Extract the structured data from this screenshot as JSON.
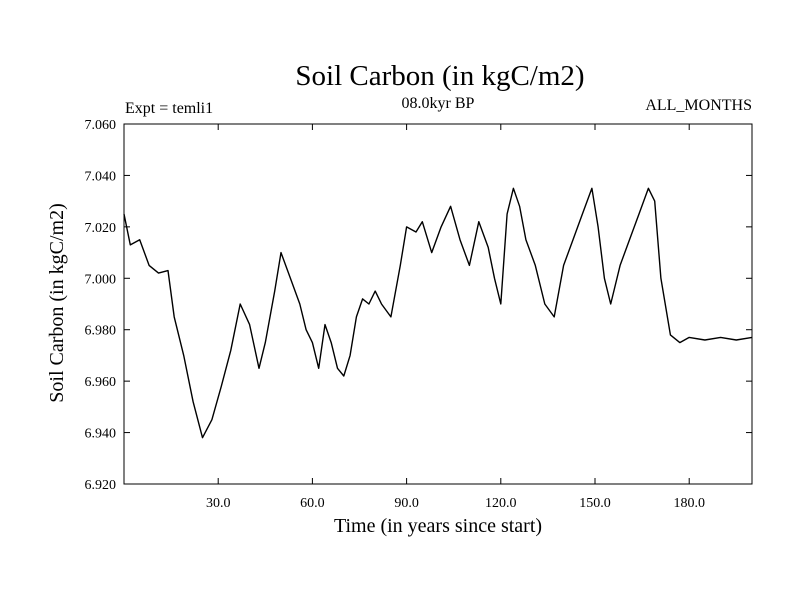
{
  "chart_data": {
    "type": "line",
    "title": "Soil Carbon (in kgC/m2)",
    "left_note": "Expt = temli1",
    "center_note": "08.0kyr BP",
    "right_note": "ALL_MONTHS",
    "xlabel": "Time (in years since start)",
    "ylabel": "Soil Carbon (in kgC/m2)",
    "xlim": [
      0,
      200
    ],
    "ylim": [
      6.92,
      7.06
    ],
    "x_ticks": [
      30,
      60,
      90,
      120,
      150,
      180
    ],
    "x_tick_labels": [
      "30.0",
      "60.0",
      "90.0",
      "120.0",
      "150.0",
      "180.0"
    ],
    "y_ticks": [
      6.92,
      6.94,
      6.96,
      6.98,
      7.0,
      7.02,
      7.04,
      7.06
    ],
    "y_tick_labels": [
      "6.920",
      "6.940",
      "6.960",
      "6.980",
      "7.000",
      "7.020",
      "7.040",
      "7.060"
    ],
    "grid": false,
    "line_color": "#000000",
    "series": [
      {
        "x": [
          0,
          2,
          5,
          8,
          11,
          14,
          16,
          19,
          22,
          25,
          28,
          31,
          34,
          37,
          40,
          43,
          45,
          48,
          50,
          53,
          56,
          58,
          60,
          62,
          64,
          66,
          68,
          70,
          72,
          74,
          76,
          78,
          80,
          82,
          85,
          88,
          90,
          93,
          95,
          98,
          101,
          104,
          107,
          110,
          113,
          116,
          118,
          120,
          122,
          124,
          126,
          128,
          131,
          134,
          137,
          140,
          143,
          146,
          149,
          151,
          153,
          155,
          158,
          161,
          164,
          167,
          169,
          171,
          174,
          177,
          180,
          185,
          190,
          195,
          200
        ],
        "y": [
          7.025,
          7.013,
          7.015,
          7.005,
          7.002,
          7.003,
          6.985,
          6.97,
          6.952,
          6.938,
          6.945,
          6.958,
          6.972,
          6.99,
          6.982,
          6.965,
          6.975,
          6.995,
          7.01,
          7.0,
          6.99,
          6.98,
          6.975,
          6.965,
          6.982,
          6.975,
          6.965,
          6.962,
          6.97,
          6.985,
          6.992,
          6.99,
          6.995,
          6.99,
          6.985,
          7.005,
          7.02,
          7.018,
          7.022,
          7.01,
          7.02,
          7.028,
          7.015,
          7.005,
          7.022,
          7.012,
          7.0,
          6.99,
          7.025,
          7.035,
          7.028,
          7.015,
          7.005,
          6.99,
          6.985,
          7.005,
          7.015,
          7.025,
          7.035,
          7.02,
          7.0,
          6.99,
          7.005,
          7.015,
          7.025,
          7.035,
          7.03,
          7.0,
          6.978,
          6.975,
          6.977,
          6.976,
          6.977,
          6.976,
          6.977
        ]
      }
    ]
  }
}
